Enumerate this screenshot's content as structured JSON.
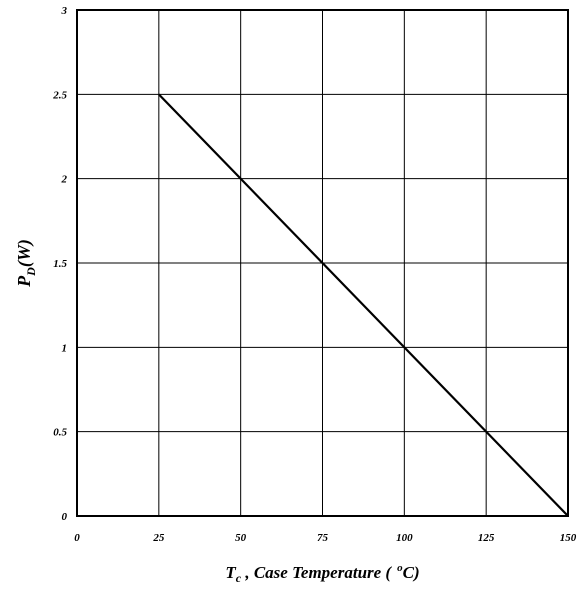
{
  "chart_data": {
    "type": "line",
    "title": "",
    "xlabel": {
      "main": "T",
      "sub": "c",
      "rest": " , Case Temperature (",
      "deg": "o",
      "unit": "C)"
    },
    "ylabel": {
      "main": "P",
      "sub": "D",
      "rest": "(W)"
    },
    "xlim": [
      0,
      150
    ],
    "ylim": [
      0,
      3
    ],
    "xticks": [
      0,
      25,
      50,
      75,
      100,
      125,
      150
    ],
    "yticks": [
      0,
      0.5,
      1,
      1.5,
      2,
      2.5,
      3
    ],
    "xtick_labels": [
      "0",
      "25",
      "50",
      "75",
      "100",
      "125",
      "150"
    ],
    "ytick_labels": [
      "0",
      "0.5",
      "1",
      "1.5",
      "2",
      "2.5",
      "3"
    ],
    "grid": true,
    "series": [
      {
        "x": [
          25,
          150
        ],
        "y": [
          2.5,
          0
        ],
        "color": "#000000"
      }
    ]
  }
}
